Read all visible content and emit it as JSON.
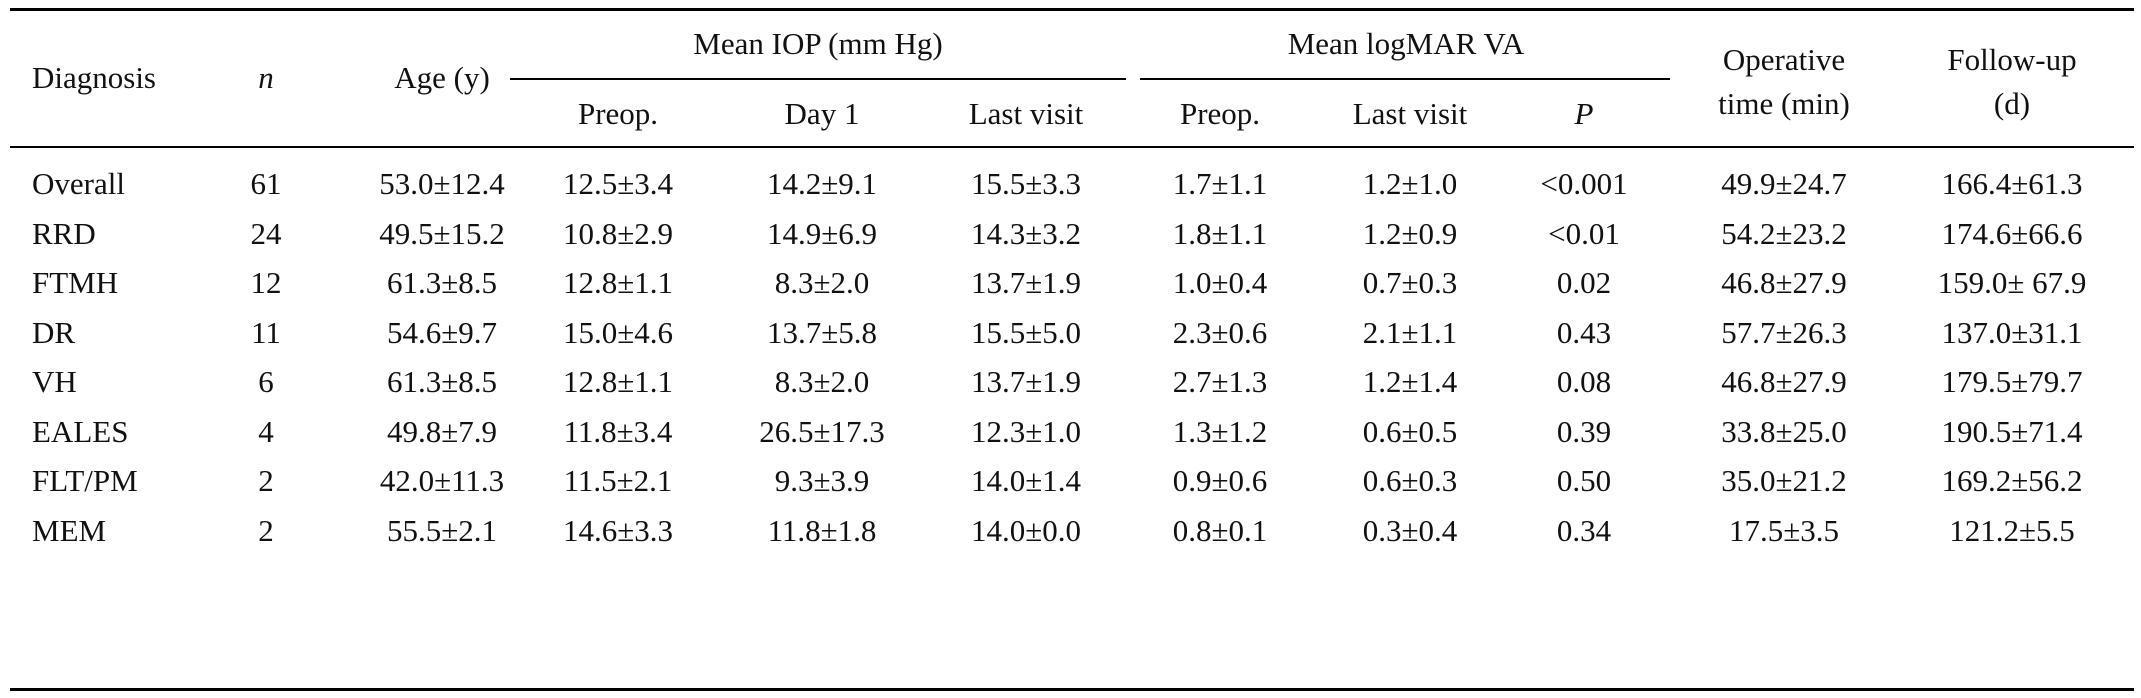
{
  "headers": {
    "diagnosis": "Diagnosis",
    "n": "n",
    "age": "Age (y)",
    "iop_group": "Mean IOP (mm Hg)",
    "va_group": "Mean logMAR VA",
    "iop_preop": "Preop.",
    "iop_day1": "Day 1",
    "iop_last": "Last visit",
    "va_preop": "Preop.",
    "va_last": "Last visit",
    "p": "P",
    "operative_line1": "Operative",
    "operative_line2": "time (min)",
    "followup_line1": "Follow-up",
    "followup_line2": "(d)"
  },
  "rows": [
    {
      "diagnosis": "Overall",
      "n": "61",
      "age": "53.0±12.4",
      "iop_preop": "12.5±3.4",
      "iop_day1": "14.2±9.1",
      "iop_last": "15.5±3.3",
      "va_preop": "1.7±1.1",
      "va_last": "1.2±1.0",
      "p": "<0.001",
      "operative": "49.9±24.7",
      "followup": "166.4±61.3"
    },
    {
      "diagnosis": "RRD",
      "n": "24",
      "age": "49.5±15.2",
      "iop_preop": "10.8±2.9",
      "iop_day1": "14.9±6.9",
      "iop_last": "14.3±3.2",
      "va_preop": "1.8±1.1",
      "va_last": "1.2±0.9",
      "p": "<0.01",
      "operative": "54.2±23.2",
      "followup": "174.6±66.6"
    },
    {
      "diagnosis": "FTMH",
      "n": "12",
      "age": "61.3±8.5",
      "iop_preop": "12.8±1.1",
      "iop_day1": "8.3±2.0",
      "iop_last": "13.7±1.9",
      "va_preop": "1.0±0.4",
      "va_last": "0.7±0.3",
      "p": "0.02",
      "operative": "46.8±27.9",
      "followup": "159.0± 67.9"
    },
    {
      "diagnosis": "DR",
      "n": "11",
      "age": "54.6±9.7",
      "iop_preop": "15.0±4.6",
      "iop_day1": "13.7±5.8",
      "iop_last": "15.5±5.0",
      "va_preop": "2.3±0.6",
      "va_last": "2.1±1.1",
      "p": "0.43",
      "operative": "57.7±26.3",
      "followup": "137.0±31.1"
    },
    {
      "diagnosis": "VH",
      "n": "6",
      "age": "61.3±8.5",
      "iop_preop": "12.8±1.1",
      "iop_day1": "8.3±2.0",
      "iop_last": "13.7±1.9",
      "va_preop": "2.7±1.3",
      "va_last": "1.2±1.4",
      "p": "0.08",
      "operative": "46.8±27.9",
      "followup": "179.5±79.7"
    },
    {
      "diagnosis": "EALES",
      "n": "4",
      "age": "49.8±7.9",
      "iop_preop": "11.8±3.4",
      "iop_day1": "26.5±17.3",
      "iop_last": "12.3±1.0",
      "va_preop": "1.3±1.2",
      "va_last": "0.6±0.5",
      "p": "0.39",
      "operative": "33.8±25.0",
      "followup": "190.5±71.4"
    },
    {
      "diagnosis": "FLT/PM",
      "n": "2",
      "age": "42.0±11.3",
      "iop_preop": "11.5±2.1",
      "iop_day1": "9.3±3.9",
      "iop_last": "14.0±1.4",
      "va_preop": "0.9±0.6",
      "va_last": "0.6±0.3",
      "p": "0.50",
      "operative": "35.0±21.2",
      "followup": "169.2±56.2"
    },
    {
      "diagnosis": "MEM",
      "n": "2",
      "age": "55.5±2.1",
      "iop_preop": "14.6±3.3",
      "iop_day1": "11.8±1.8",
      "iop_last": "14.0±0.0",
      "va_preop": "0.8±0.1",
      "va_last": "0.3±0.4",
      "p": "0.34",
      "operative": "17.5±3.5",
      "followup": "121.2±5.5"
    }
  ]
}
